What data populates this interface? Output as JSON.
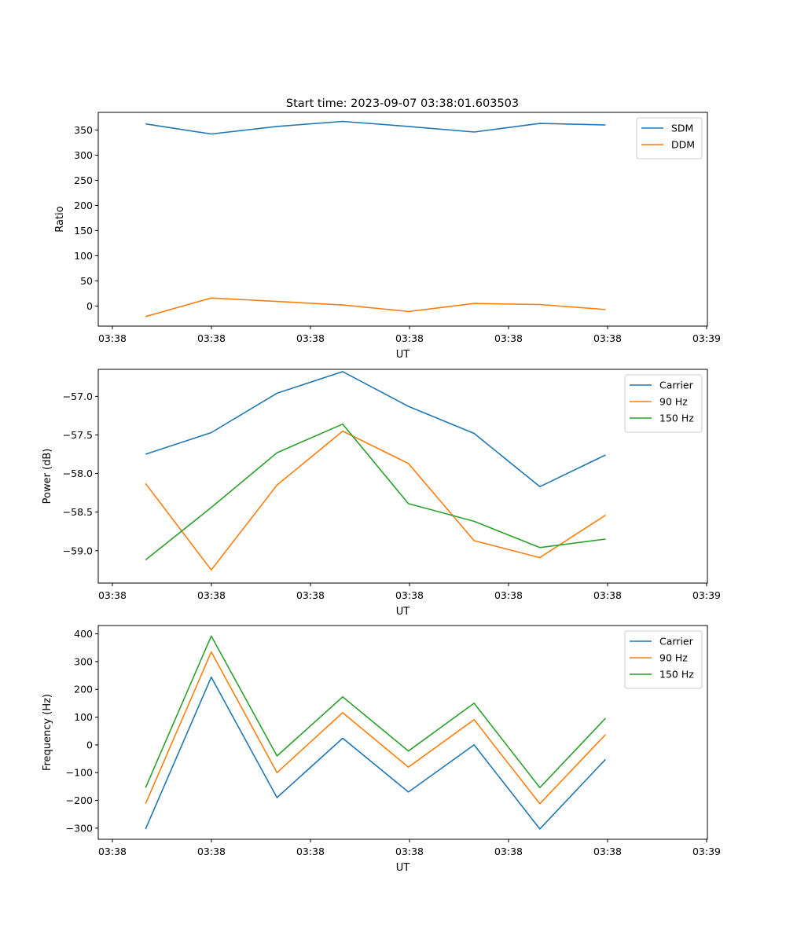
{
  "title": "Start time: 2023-09-07 03:38:01.603503",
  "colors": {
    "blue": "#1f77b4",
    "orange": "#ff7f0e",
    "green": "#2ca02c"
  },
  "chart_data": [
    {
      "type": "line",
      "xlabel": "UT",
      "ylabel": "Ratio",
      "xtick_labels": [
        "03:38",
        "03:38",
        "03:38",
        "03:38",
        "03:38",
        "03:38",
        "03:38"
      ],
      "xtick_last_label": "03:39",
      "yticks": [
        0,
        50,
        100,
        150,
        200,
        250,
        300,
        350
      ],
      "ylim": [
        -40,
        385
      ],
      "x": [
        0,
        1,
        2,
        3,
        4,
        5,
        6,
        7
      ],
      "xlim": [
        -0.72,
        8.55
      ],
      "legend_position": "top-right",
      "series": [
        {
          "name": "SDM",
          "color": "#1f77b4",
          "values": [
            362,
            342,
            357,
            367,
            357,
            346,
            363,
            360
          ]
        },
        {
          "name": "DDM",
          "color": "#ff7f0e",
          "values": [
            -21,
            16,
            9,
            2,
            -11,
            5,
            3,
            -7
          ]
        }
      ]
    },
    {
      "type": "line",
      "xlabel": "UT",
      "ylabel": "Power (dB)",
      "xtick_labels": [
        "03:38",
        "03:38",
        "03:38",
        "03:38",
        "03:38",
        "03:38",
        "03:38"
      ],
      "xtick_last_label": "03:39",
      "yticks": [
        -59.0,
        -58.5,
        -58.0,
        -57.5,
        -57.0
      ],
      "ytick_labels": [
        "−59.0",
        "−58.5",
        "−58.0",
        "−57.5",
        "−57.0"
      ],
      "ylim": [
        -59.42,
        -56.65
      ],
      "x": [
        0,
        1,
        2,
        3,
        4,
        5,
        6,
        7
      ],
      "xlim": [
        -0.72,
        8.55
      ],
      "legend_position": "top-right",
      "series": [
        {
          "name": "Carrier",
          "color": "#1f77b4",
          "values": [
            -57.75,
            -57.47,
            -56.96,
            -56.68,
            -57.13,
            -57.48,
            -58.17,
            -57.76
          ]
        },
        {
          "name": "90 Hz",
          "color": "#ff7f0e",
          "values": [
            -58.13,
            -59.25,
            -58.15,
            -57.45,
            -57.87,
            -58.87,
            -59.09,
            -58.54
          ]
        },
        {
          "name": "150 Hz",
          "color": "#2ca02c",
          "values": [
            -59.12,
            -58.44,
            -57.73,
            -57.36,
            -58.39,
            -58.62,
            -58.96,
            -58.85
          ]
        }
      ]
    },
    {
      "type": "line",
      "xlabel": "UT",
      "ylabel": "Frequency (Hz)",
      "xtick_labels": [
        "03:38",
        "03:38",
        "03:38",
        "03:38",
        "03:38",
        "03:38",
        "03:38"
      ],
      "xtick_last_label": "03:39",
      "yticks": [
        -300,
        -200,
        -100,
        0,
        100,
        200,
        300,
        400
      ],
      "ytick_labels": [
        "−300",
        "−200",
        "−100",
        "0",
        "100",
        "200",
        "300",
        "400"
      ],
      "ylim": [
        -340,
        430
      ],
      "x": [
        0,
        1,
        2,
        3,
        4,
        5,
        6,
        7
      ],
      "xlim": [
        -0.72,
        8.55
      ],
      "legend_position": "top-right",
      "series": [
        {
          "name": "Carrier",
          "color": "#1f77b4",
          "values": [
            -303,
            244,
            -190,
            24,
            -170,
            0,
            -303,
            -52
          ]
        },
        {
          "name": "90 Hz",
          "color": "#ff7f0e",
          "values": [
            -212,
            335,
            -100,
            116,
            -80,
            91,
            -212,
            37
          ]
        },
        {
          "name": "150 Hz",
          "color": "#2ca02c",
          "values": [
            -154,
            392,
            -40,
            173,
            -22,
            150,
            -154,
            96
          ]
        }
      ]
    }
  ]
}
